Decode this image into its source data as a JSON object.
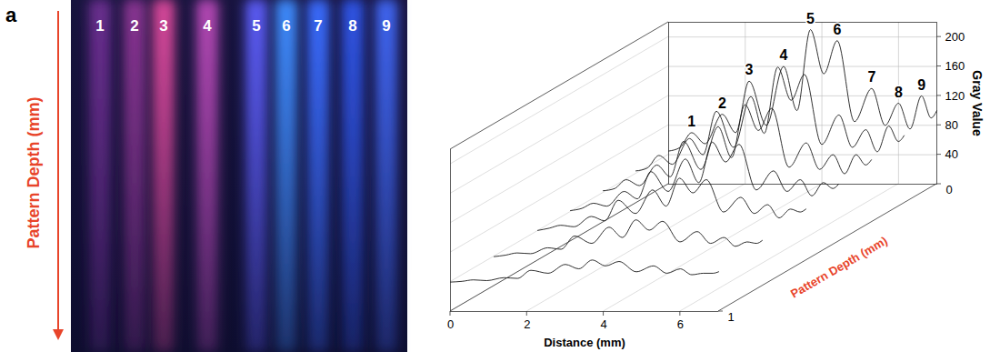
{
  "panel_label": "a",
  "photo": {
    "type": "photo",
    "axis_label": "Pattern Depth (mm)",
    "labels": [
      "1",
      "2",
      "3",
      "4",
      "5",
      "6",
      "7",
      "8",
      "9"
    ],
    "colors": [
      "#6b2e8f",
      "#8a3592",
      "#d8489a",
      "#b448b4",
      "#5b5cf5",
      "#3f8cff",
      "#3a6cff",
      "#2f55e6",
      "#4066f2"
    ]
  },
  "chart_data": {
    "type": "waterfall",
    "x_label": "Distance (mm)",
    "y_label": "Gray Value",
    "z_label": "Pattern Depth (mm)",
    "xlim": [
      0,
      7
    ],
    "xticks": [
      0,
      2,
      4,
      6
    ],
    "ylim": [
      0,
      220
    ],
    "yticks": [
      40,
      80,
      120,
      160,
      200
    ],
    "zlim": [
      0,
      1
    ],
    "zticks": [
      0,
      1
    ],
    "grid": true,
    "color": "#1a1a1a",
    "x": [
      0,
      0.3,
      0.6,
      0.95,
      1.4,
      1.75,
      2.1,
      2.55,
      3.0,
      3.35,
      3.7,
      4.05,
      4.4,
      4.85,
      5.3,
      5.65,
      6.0,
      6.3,
      6.6,
      6.85,
      7.0
    ],
    "series": [
      {
        "depth": 0,
        "values": [
          45,
          50,
          70,
          55,
          95,
          70,
          140,
          80,
          160,
          100,
          210,
          150,
          195,
          85,
          130,
          80,
          110,
          75,
          120,
          90,
          100
        ]
      },
      {
        "depth": 0.15,
        "values": [
          44,
          48,
          65,
          53,
          88,
          66,
          125,
          76,
          145,
          95,
          185,
          140,
          175,
          80,
          120,
          76,
          100,
          70,
          105,
          84,
          92
        ]
      },
      {
        "depth": 0.3,
        "values": [
          43,
          46,
          58,
          50,
          78,
          62,
          110,
          72,
          130,
          88,
          160,
          125,
          155,
          75,
          108,
          72,
          92,
          66,
          92,
          78,
          85
        ]
      },
      {
        "depth": 0.45,
        "values": [
          42,
          45,
          52,
          48,
          68,
          58,
          95,
          68,
          112,
          80,
          135,
          108,
          132,
          70,
          96,
          68,
          84,
          62,
          80,
          72,
          78
        ]
      },
      {
        "depth": 0.6,
        "values": [
          41,
          44,
          48,
          46,
          60,
          54,
          82,
          64,
          96,
          74,
          112,
          92,
          110,
          66,
          86,
          64,
          76,
          58,
          70,
          66,
          70
        ]
      },
      {
        "depth": 0.8,
        "values": [
          40,
          42,
          45,
          44,
          52,
          50,
          68,
          58,
          80,
          66,
          90,
          76,
          88,
          60,
          74,
          58,
          66,
          54,
          60,
          58,
          62
        ]
      },
      {
        "depth": 1,
        "values": [
          40,
          41,
          43,
          42,
          46,
          45,
          56,
          52,
          64,
          58,
          70,
          62,
          68,
          54,
          62,
          52,
          58,
          50,
          52,
          52,
          54
        ]
      }
    ],
    "peak_labels": {
      "labels": [
        "1",
        "2",
        "3",
        "4",
        "5",
        "6",
        "7",
        "8",
        "9"
      ],
      "x": [
        0.6,
        1.4,
        2.1,
        3.0,
        3.7,
        4.4,
        5.3,
        6.0,
        6.6
      ]
    }
  }
}
